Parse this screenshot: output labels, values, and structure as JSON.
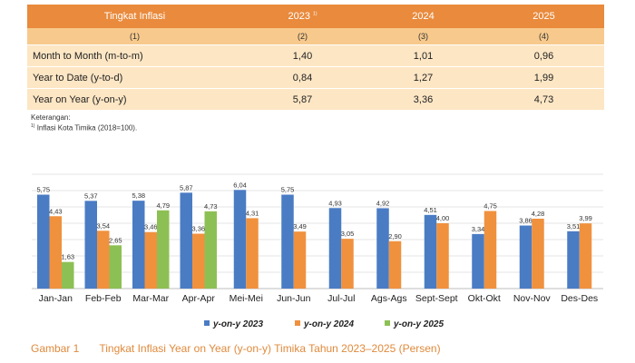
{
  "table": {
    "headers": [
      "Tingkat Inflasi",
      "2023",
      "2024",
      "2025"
    ],
    "header_footnote": "1)",
    "column_numbers": [
      "(1)",
      "(2)",
      "(3)",
      "(4)"
    ],
    "rows": [
      [
        "Month to Month (m-to-m)",
        "1,40",
        "1,01",
        "0,96"
      ],
      [
        "Year to Date (y-to-d)",
        "0,84",
        "1,27",
        "1,99"
      ],
      [
        "Year on Year (y-on-y)",
        "5,87",
        "3,36",
        "4,73"
      ]
    ]
  },
  "notes": {
    "title": "Keterangan:",
    "footnote_mark": "1)",
    "footnote": "Inflasi Kota Timika (2018=100)."
  },
  "chart_data": {
    "type": "bar",
    "categories": [
      "Jan-Jan",
      "Feb-Feb",
      "Mar-Mar",
      "Apr-Apr",
      "Mei-Mei",
      "Jun-Jun",
      "Jul-Jul",
      "Ags-Ags",
      "Sept-Sept",
      "Okt-Okt",
      "Nov-Nov",
      "Des-Des"
    ],
    "series": [
      {
        "name": "y-on-y 2023",
        "color": "#4a7cc4",
        "values": [
          5.75,
          5.37,
          5.38,
          5.87,
          6.04,
          5.75,
          4.93,
          4.92,
          4.51,
          3.34,
          3.86,
          3.51
        ],
        "labels": [
          "5,75",
          "5,37",
          "5,38",
          "5,87",
          "6,04",
          "5,75",
          "4,93",
          "4,92",
          "4,51",
          "3,34",
          "3,86",
          "3,51"
        ]
      },
      {
        "name": "y-on-y 2024",
        "color": "#f0913e",
        "values": [
          4.43,
          3.54,
          3.46,
          3.36,
          4.31,
          3.49,
          3.05,
          2.9,
          4.0,
          4.75,
          4.28,
          3.99
        ],
        "labels": [
          "4,43",
          "3,54",
          "3,46",
          "3,36",
          "4,31",
          "3,49",
          "3,05",
          "2,90",
          "4,00",
          "4,75",
          "4,28",
          "3,99"
        ]
      },
      {
        "name": "y-on-y 2025",
        "color": "#8dc054",
        "values": [
          1.63,
          2.65,
          4.79,
          4.73,
          null,
          null,
          null,
          null,
          null,
          null,
          null,
          null
        ],
        "labels": [
          "1,63",
          "2,65",
          "4,79",
          "4,73",
          null,
          null,
          null,
          null,
          null,
          null,
          null,
          null
        ]
      }
    ],
    "ylim": [
      0,
      7
    ],
    "grid": true,
    "legend_position": "bottom"
  },
  "caption": {
    "number": "Gambar 1",
    "text": "Tingkat Inflasi Year on Year (y-on-y) Timika Tahun 2023–2025 (Persen)"
  }
}
